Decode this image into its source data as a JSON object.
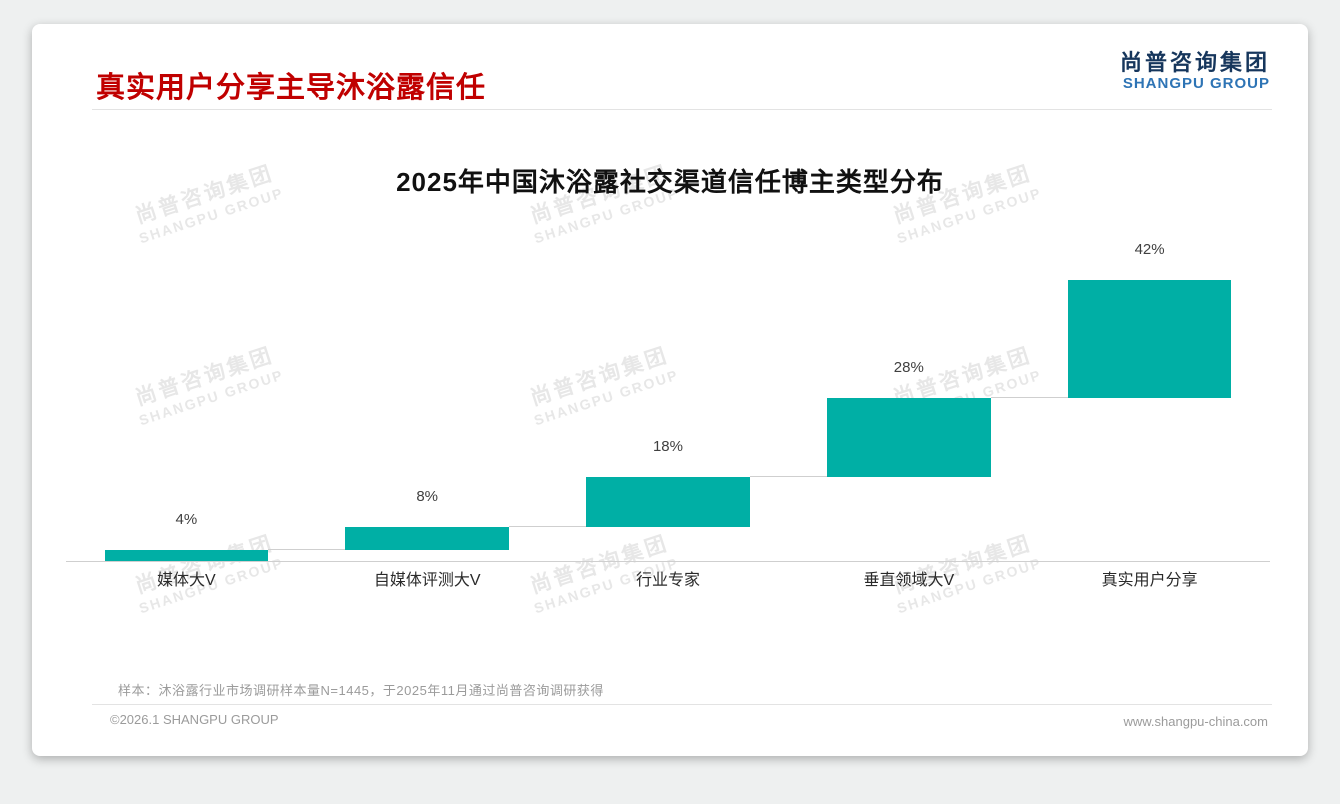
{
  "page": {
    "title": "真实用户分享主导沐浴露信任",
    "logo": {
      "cn": "尚普咨询集团",
      "en": "SHANGPU GROUP"
    },
    "watermark": {
      "cn": "尚普咨询集团",
      "en": "SHANGPU GROUP"
    },
    "note": "样本：沐浴露行业市场调研样本量N=1445，于2025年11月通过尚普咨询调研获得",
    "footer": {
      "left": "©2026.1 SHANGPU GROUP",
      "right": "www.shangpu-china.com"
    }
  },
  "colors": {
    "title_red": "#c00000",
    "bar_teal": "#00afa5",
    "logo_navy": "#16365c",
    "logo_blue": "#2e74b5"
  },
  "chart_data": {
    "type": "bar",
    "subtype": "waterfall",
    "title": "2025年中国沐浴露社交渠道信任博主类型分布",
    "categories": [
      "媒体大V",
      "自媒体评测大V",
      "行业专家",
      "垂直领域大V",
      "真实用户分享"
    ],
    "values": [
      4,
      8,
      18,
      28,
      42
    ],
    "labels": [
      "4%",
      "8%",
      "18%",
      "28%",
      "42%"
    ],
    "cumulative_start": [
      0,
      4,
      12,
      30,
      58
    ],
    "cumulative_end": [
      4,
      12,
      30,
      58,
      100
    ],
    "ylim": [
      0,
      100
    ],
    "bar_color": "#00afa5",
    "grid": false,
    "legend": false,
    "xlabel": "",
    "ylabel": ""
  }
}
